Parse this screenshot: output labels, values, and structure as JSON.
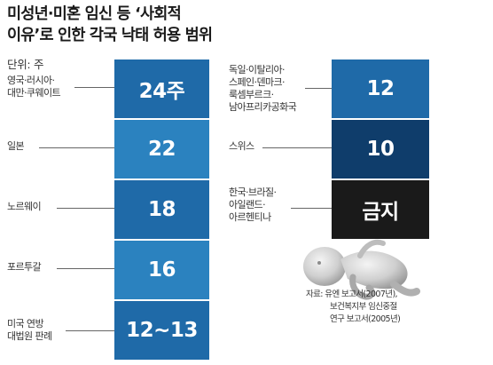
{
  "title_lines": [
    "미성년·미혼 임신 등 ‘사회적",
    "이유’로 인한 각국 낙태 허용 범위"
  ],
  "unit": "단위: 주",
  "colors": {
    "bar_light": "#2b82bf",
    "bar_mid": "#1f6aa8",
    "bar_dark": "#0f3d6b",
    "bar_darker": "#0b3158",
    "bar_banned": "#1a1a1a"
  },
  "chart_data": {
    "type": "table",
    "left_column": [
      {
        "country_lines": [
          "영국·러시아·",
          "대만·쿠웨이트"
        ],
        "value_label": "24주",
        "weeks": 24
      },
      {
        "country_lines": [
          "일본"
        ],
        "value_label": "22",
        "weeks": 22
      },
      {
        "country_lines": [
          "노르웨이"
        ],
        "value_label": "18",
        "weeks": 18
      },
      {
        "country_lines": [
          "포르투갈"
        ],
        "value_label": "16",
        "weeks": 16
      },
      {
        "country_lines": [
          "미국 연방",
          "대법원 판례"
        ],
        "value_label": "12~13",
        "weeks": "12~13"
      }
    ],
    "right_column": [
      {
        "country_lines": [
          "독일·이탈리아·",
          "스페인·덴마크·",
          "룩셈부르크·",
          "남아프리카공화국"
        ],
        "value_label": "12",
        "weeks": 12
      },
      {
        "country_lines": [
          "스위스"
        ],
        "value_label": "10",
        "weeks": 10
      },
      {
        "country_lines": [
          "한국·브라질·",
          "아일랜드·",
          "아르헨티나"
        ],
        "value_label": "금지",
        "weeks": null
      }
    ]
  },
  "source_lines": [
    "자료: 유엔 보고서(2007년),",
    "보건복지부 임신중절",
    "연구 보고서(2005년)"
  ]
}
